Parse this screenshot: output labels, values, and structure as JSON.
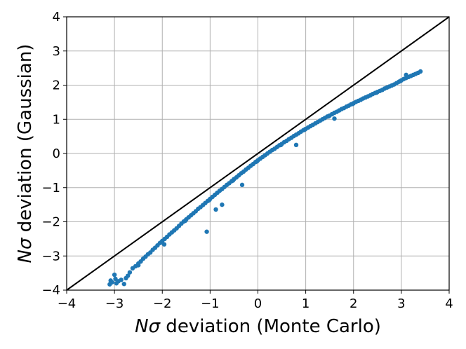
{
  "chart_data": {
    "type": "scatter",
    "xlabel": {
      "prefix": "N",
      "symbol": "σ",
      "rest": " deviation (Monte Carlo)"
    },
    "ylabel": {
      "prefix": "N",
      "symbol": "σ",
      "rest": " deviation (Gaussian)"
    },
    "xlim": [
      -4,
      4
    ],
    "ylim": [
      -4,
      4
    ],
    "xticks": [
      "−4",
      "−3",
      "−2",
      "−1",
      "0",
      "1",
      "2",
      "3",
      "4"
    ],
    "yticks": [
      "−4",
      "−3",
      "−2",
      "−1",
      "0",
      "1",
      "2",
      "3",
      "4"
    ],
    "xtick_values": [
      -4,
      -3,
      -2,
      -1,
      0,
      1,
      2,
      3,
      4
    ],
    "ytick_values": [
      -4,
      -3,
      -2,
      -1,
      0,
      1,
      2,
      3,
      4
    ],
    "grid": true,
    "reference_line": {
      "from": [
        -4,
        -4
      ],
      "to": [
        4,
        4
      ],
      "color": "#000000"
    },
    "marker_color": "#1f77b4",
    "series": [
      {
        "values": [
          [
            -3.1,
            -3.83
          ],
          [
            -3.08,
            -3.72
          ],
          [
            -3.05,
            -3.77
          ],
          [
            -3.0,
            -3.55
          ],
          [
            -2.96,
            -3.8
          ],
          [
            -2.92,
            -3.74
          ],
          [
            -2.86,
            -3.7
          ],
          [
            -2.8,
            -3.82
          ],
          [
            -2.76,
            -3.65
          ],
          [
            -2.72,
            -3.58
          ],
          [
            -2.68,
            -3.48
          ],
          [
            -2.62,
            -3.36
          ],
          [
            -2.56,
            -3.3
          ],
          [
            -2.5,
            -3.22
          ],
          [
            -2.45,
            -3.16
          ],
          [
            -2.4,
            -3.08
          ],
          [
            -2.35,
            -3.02
          ],
          [
            -2.3,
            -2.95
          ],
          [
            -2.25,
            -2.9
          ],
          [
            -2.2,
            -2.82
          ],
          [
            -2.15,
            -2.76
          ],
          [
            -2.1,
            -2.69
          ],
          [
            -2.05,
            -2.62
          ],
          [
            -2.0,
            -2.56
          ],
          [
            -1.95,
            -2.5
          ],
          [
            -1.9,
            -2.44
          ],
          [
            -1.85,
            -2.37
          ],
          [
            -1.8,
            -2.31
          ],
          [
            -1.75,
            -2.25
          ],
          [
            -1.7,
            -2.19
          ],
          [
            -1.65,
            -2.12
          ],
          [
            -1.6,
            -2.05
          ],
          [
            -1.55,
            -1.99
          ],
          [
            -1.5,
            -1.93
          ],
          [
            -1.45,
            -1.87
          ],
          [
            -1.4,
            -1.81
          ],
          [
            -1.35,
            -1.75
          ],
          [
            -1.3,
            -1.69
          ],
          [
            -1.25,
            -1.62
          ],
          [
            -1.2,
            -1.57
          ],
          [
            -1.15,
            -1.51
          ],
          [
            -1.1,
            -1.45
          ],
          [
            -1.05,
            -1.39
          ],
          [
            -1.0,
            -1.33
          ],
          [
            -0.95,
            -1.27
          ],
          [
            -0.9,
            -1.21
          ],
          [
            -0.85,
            -1.15
          ],
          [
            -0.8,
            -1.09
          ],
          [
            -0.75,
            -1.04
          ],
          [
            -0.7,
            -0.98
          ],
          [
            -0.65,
            -0.92
          ],
          [
            -0.6,
            -0.87
          ],
          [
            -0.55,
            -0.81
          ],
          [
            -0.5,
            -0.75
          ],
          [
            -0.45,
            -0.7
          ],
          [
            -0.4,
            -0.64
          ],
          [
            -0.35,
            -0.58
          ],
          [
            -0.3,
            -0.53
          ],
          [
            -0.25,
            -0.47
          ],
          [
            -0.2,
            -0.42
          ],
          [
            -0.15,
            -0.36
          ],
          [
            -0.1,
            -0.31
          ],
          [
            -0.05,
            -0.25
          ],
          [
            0.0,
            -0.2
          ],
          [
            0.05,
            -0.15
          ],
          [
            0.1,
            -0.1
          ],
          [
            0.15,
            -0.05
          ],
          [
            0.2,
            0.0
          ],
          [
            0.25,
            0.05
          ],
          [
            0.3,
            0.1
          ],
          [
            0.35,
            0.14
          ],
          [
            0.4,
            0.19
          ],
          [
            0.45,
            0.24
          ],
          [
            0.5,
            0.28
          ],
          [
            0.55,
            0.33
          ],
          [
            0.6,
            0.37
          ],
          [
            0.65,
            0.42
          ],
          [
            0.7,
            0.46
          ],
          [
            0.75,
            0.51
          ],
          [
            0.8,
            0.55
          ],
          [
            0.85,
            0.59
          ],
          [
            0.9,
            0.64
          ],
          [
            0.95,
            0.68
          ],
          [
            1.0,
            0.72
          ],
          [
            1.05,
            0.76
          ],
          [
            1.1,
            0.8
          ],
          [
            1.15,
            0.84
          ],
          [
            1.2,
            0.88
          ],
          [
            1.25,
            0.92
          ],
          [
            1.3,
            0.96
          ],
          [
            1.35,
            1.0
          ],
          [
            1.4,
            1.04
          ],
          [
            1.45,
            1.08
          ],
          [
            1.5,
            1.11
          ],
          [
            1.55,
            1.15
          ],
          [
            1.6,
            1.19
          ],
          [
            1.65,
            1.22
          ],
          [
            1.7,
            1.26
          ],
          [
            1.75,
            1.3
          ],
          [
            1.8,
            1.33
          ],
          [
            1.85,
            1.37
          ],
          [
            1.9,
            1.4
          ],
          [
            1.95,
            1.44
          ],
          [
            2.0,
            1.47
          ],
          [
            2.05,
            1.51
          ],
          [
            2.1,
            1.54
          ],
          [
            2.15,
            1.57
          ],
          [
            2.2,
            1.61
          ],
          [
            2.25,
            1.64
          ],
          [
            2.3,
            1.67
          ],
          [
            2.35,
            1.7
          ],
          [
            2.4,
            1.74
          ],
          [
            2.45,
            1.77
          ],
          [
            2.5,
            1.8
          ],
          [
            2.55,
            1.83
          ],
          [
            2.6,
            1.86
          ],
          [
            2.65,
            1.9
          ],
          [
            2.7,
            1.93
          ],
          [
            2.75,
            1.96
          ],
          [
            2.8,
            1.99
          ],
          [
            2.85,
            2.02
          ],
          [
            2.9,
            2.06
          ],
          [
            2.95,
            2.1
          ],
          [
            3.0,
            2.14
          ],
          [
            3.05,
            2.18
          ],
          [
            3.1,
            2.21
          ],
          [
            3.15,
            2.24
          ],
          [
            3.2,
            2.27
          ],
          [
            3.25,
            2.3
          ],
          [
            3.3,
            2.33
          ],
          [
            3.35,
            2.36
          ],
          [
            3.4,
            2.4
          ],
          [
            -2.98,
            -3.67
          ],
          [
            -2.5,
            -3.27
          ],
          [
            -2.02,
            -2.6
          ],
          [
            -1.52,
            -1.97
          ],
          [
            -1.02,
            -1.37
          ],
          [
            -0.52,
            -0.79
          ],
          [
            -0.02,
            -0.23
          ],
          [
            0.48,
            0.25
          ],
          [
            0.98,
            0.7
          ],
          [
            1.48,
            1.09
          ],
          [
            1.98,
            1.45
          ],
          [
            2.48,
            1.78
          ],
          [
            2.98,
            2.12
          ],
          [
            -1.96,
            -2.66
          ],
          [
            -1.07,
            -2.29
          ],
          [
            -0.88,
            -1.64
          ],
          [
            -0.75,
            -1.5
          ],
          [
            -0.33,
            -0.92
          ],
          [
            0.8,
            0.25
          ],
          [
            1.6,
            1.02
          ],
          [
            3.1,
            2.3
          ]
        ]
      }
    ]
  }
}
